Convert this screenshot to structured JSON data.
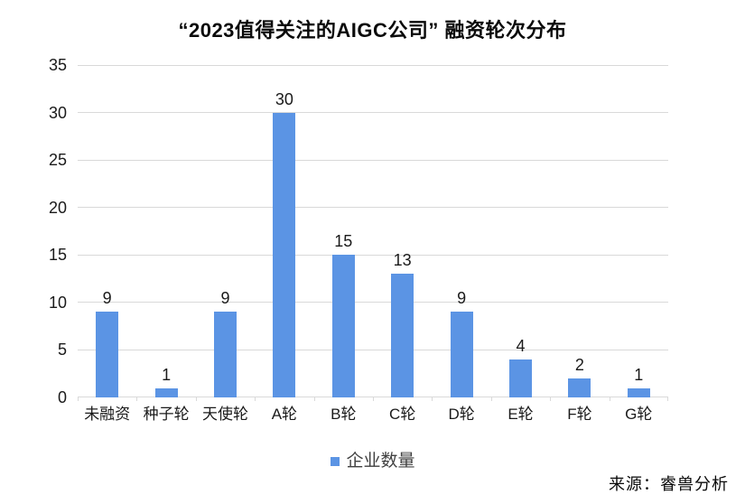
{
  "title": "“2023值得关注的AIGC公司” 融资轮次分布",
  "legend": {
    "label": "企业数量"
  },
  "source": "来源：睿兽分析",
  "colors": {
    "bar": "#5B94E4",
    "gridline": "#D9D9D9",
    "axis_text": "#1A1A1A",
    "legend_text": "#404040"
  },
  "chart_data": {
    "type": "bar",
    "title": "“2023值得关注的AIGC公司” 融资轮次分布",
    "categories": [
      "未融资",
      "种子轮",
      "天使轮",
      "A轮",
      "B轮",
      "C轮",
      "D轮",
      "E轮",
      "F轮",
      "G轮"
    ],
    "values": [
      9,
      1,
      9,
      30,
      15,
      13,
      9,
      4,
      2,
      1
    ],
    "series_name": "企业数量",
    "xlabel": "",
    "ylabel": "",
    "ylim": [
      0,
      35
    ],
    "ytick_step": 5,
    "grid": true,
    "data_labels": true,
    "legend_position": "bottom"
  }
}
